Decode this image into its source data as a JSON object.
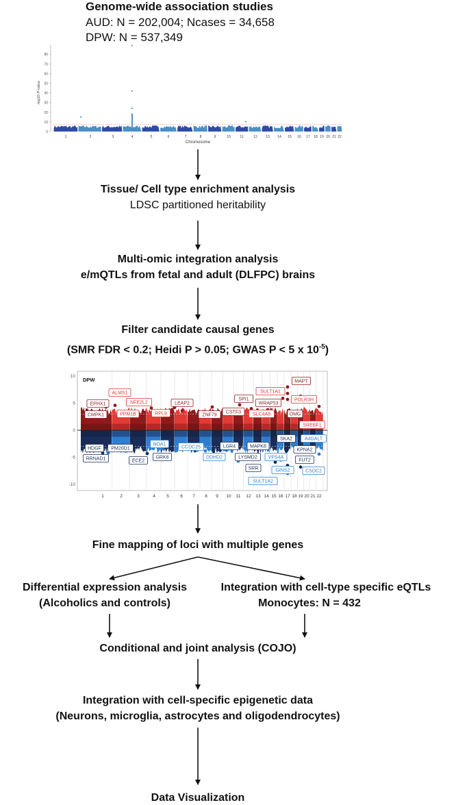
{
  "gwas": {
    "title": "Genome-wide association studies",
    "line1": "AUD: N = 202,004; Ncases = 34,658",
    "line2": "DPW: N = 537,349"
  },
  "steps": {
    "tissue_title": "Tissue/ Cell type enrichment analysis",
    "tissue_sub": "LDSC partitioned heritability",
    "multiomic_title": "Multi-omic integration analysis",
    "multiomic_sub": "e/mQTLs from fetal and adult (DLFPC) brains",
    "filter_title": "Filter candidate causal genes",
    "filter_sub_prefix": "(SMR FDR < 0.2; Heidi P > 0.05; GWAS P < 5 x 10",
    "filter_sub_exp": "-5",
    "filter_sub_suffix": ")",
    "finemap": "Fine mapping of loci with multiple genes",
    "diffexp_title": "Differential expression analysis",
    "diffexp_sub": "(Alcoholics and controls)",
    "celltype_title": "Integration with cell-type specific eQTLs",
    "celltype_sub": "Monocytes: N = 432",
    "cojo": "Conditional and joint analysis (COJO)",
    "epi_title": "Integration with cell-specific epigenetic data",
    "epi_sub": "(Neurons, microglia, astrocytes and oligodendrocytes)",
    "dataviz": "Data Visualization"
  },
  "chart_data": [
    {
      "type": "scatter",
      "subtype": "manhattan",
      "xlabel": "Chromosome",
      "ylabel": "-log10 P-value",
      "categories": [
        "1",
        "2",
        "3",
        "4",
        "5",
        "6",
        "7",
        "8",
        "9",
        "10",
        "11",
        "12",
        "13",
        "14",
        "15",
        "16",
        "17",
        "18",
        "19",
        "20",
        "21",
        "22"
      ],
      "yticks": [
        0,
        10,
        20,
        30,
        40,
        50,
        60,
        70,
        80
      ],
      "ylim": [
        0,
        90
      ],
      "significance_line": 7.3,
      "peaks": [
        {
          "chromosome": "2",
          "value": 15
        },
        {
          "chromosome": "4",
          "value": 89
        },
        {
          "chromosome": "4",
          "value": 42
        },
        {
          "chromosome": "4",
          "value": 24
        },
        {
          "chromosome": "4",
          "value": 18
        },
        {
          "chromosome": "11",
          "value": 10
        }
      ],
      "colors": [
        "#2f4ba8",
        "#4a90c8"
      ]
    },
    {
      "type": "scatter",
      "subtype": "miami",
      "title": "DPW",
      "categories": [
        "1",
        "2",
        "3",
        "4",
        "5",
        "6",
        "7",
        "8",
        "9",
        "10",
        "11",
        "12",
        "13",
        "14",
        "15",
        "16",
        "17",
        "18",
        "19",
        "20",
        "21",
        "22"
      ],
      "yticks": [
        "10",
        "5",
        "0",
        "-5",
        "-10"
      ],
      "ylim": [
        -11,
        11
      ],
      "colors": {
        "up_dark": "#8e1b1b",
        "up_light": "#e23a35",
        "down_dark": "#1a2d58",
        "down_light": "#2f7dd0"
      },
      "labels_up": [
        "EPHX1",
        "ALMS1",
        "NFE2L2",
        "LEAP2",
        "SPI1",
        "SULT1A1",
        "MAPT",
        "CMPK1",
        "PPM1B",
        "RPL9",
        "ZNF79",
        "CSTF3",
        "SLC4A8",
        "WRAP53",
        "POLR3H",
        "OMG",
        "SREBF1"
      ],
      "labels_down": [
        "HDGF",
        "PM20D1",
        "RRNAD1",
        "NOA1",
        "CCDC25",
        "ECE2",
        "GRK6",
        "DDHD2",
        "LGR4",
        "MAPK8",
        "LYSMD2",
        "SRR",
        "VPS4A",
        "SKA2",
        "A4GALT",
        "KPNA2",
        "FUT2",
        "GINS2",
        "CSDC2",
        "SULT1A2"
      ]
    }
  ]
}
